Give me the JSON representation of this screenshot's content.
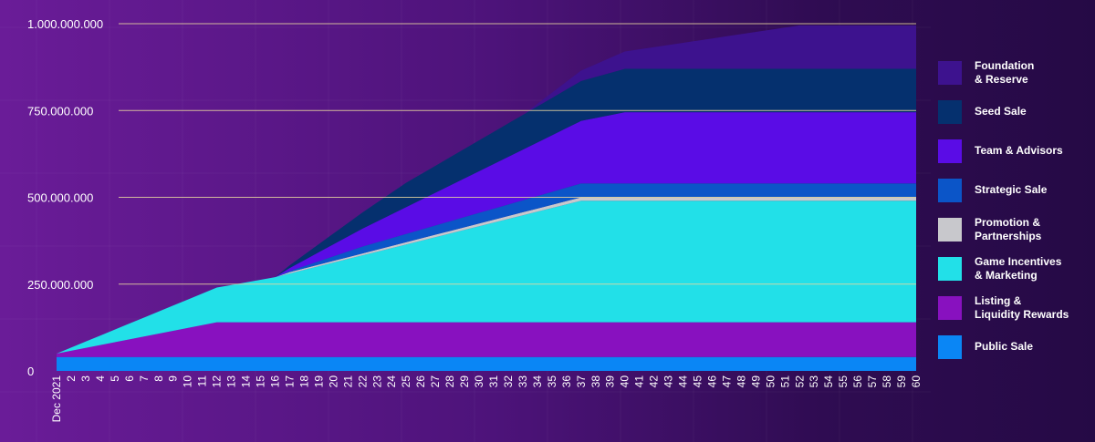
{
  "chart_data": {
    "type": "area",
    "stacked": true,
    "title": "",
    "xlabel": "",
    "ylabel": "",
    "ylim": [
      0,
      1000000000
    ],
    "y_ticks": [
      0,
      250000000,
      500000000,
      750000000,
      1000000000
    ],
    "y_tick_labels": [
      "0",
      "250.000.000",
      "500.000.000",
      "750.000.000",
      "1.000.000.000"
    ],
    "x_ticks": [
      "Dec 2021",
      "2",
      "3",
      "4",
      "5",
      "6",
      "7",
      "8",
      "9",
      "10",
      "11",
      "12",
      "13",
      "14",
      "15",
      "16",
      "17",
      "18",
      "19",
      "20",
      "21",
      "22",
      "23",
      "24",
      "25",
      "26",
      "27",
      "28",
      "29",
      "30",
      "31",
      "32",
      "33",
      "34",
      "35",
      "36",
      "37",
      "38",
      "39",
      "40",
      "41",
      "42",
      "43",
      "44",
      "45",
      "46",
      "47",
      "48",
      "49",
      "50",
      "51",
      "52",
      "53",
      "54",
      "55",
      "56",
      "57",
      "58",
      "59",
      "60"
    ],
    "grid": "horizontal",
    "legend_position": "right",
    "series": [
      {
        "name": "Public Sale",
        "legend": "Public Sale",
        "color": "#0a86f5",
        "points": [
          [
            1,
            40000000
          ],
          [
            60,
            40000000
          ]
        ]
      },
      {
        "name": "Listing & Liquidity Rewards",
        "legend": "Listing &\nLiquidity Rewards",
        "color": "#8811bf",
        "points": [
          [
            1,
            10000000
          ],
          [
            12,
            100000000
          ],
          [
            60,
            100000000
          ]
        ]
      },
      {
        "name": "Game Incentives & Marketing",
        "legend": "Game Incentives\n& Marketing",
        "color": "#22e0e8",
        "points": [
          [
            1,
            0
          ],
          [
            12,
            100000000
          ],
          [
            16,
            130000000
          ],
          [
            37,
            350000000
          ],
          [
            60,
            350000000
          ]
        ]
      },
      {
        "name": "Promotion & Partnerships",
        "legend": "Promotion &\nPartnerships",
        "color": "#c8c8cc",
        "points": [
          [
            1,
            0
          ],
          [
            16,
            0
          ],
          [
            17,
            4000000
          ],
          [
            37,
            10000000
          ],
          [
            60,
            10000000
          ]
        ]
      },
      {
        "name": "Strategic Sale",
        "legend": "Strategic Sale",
        "color": "#0b55c8",
        "points": [
          [
            1,
            0
          ],
          [
            16,
            0
          ],
          [
            22,
            20000000
          ],
          [
            37,
            40000000
          ],
          [
            60,
            40000000
          ]
        ]
      },
      {
        "name": "Team & Advisors",
        "legend": "Team & Advisors",
        "color": "#5a0ce6",
        "points": [
          [
            1,
            0
          ],
          [
            16,
            0
          ],
          [
            37,
            180000000
          ],
          [
            40,
            205000000
          ],
          [
            60,
            205000000
          ]
        ]
      },
      {
        "name": "Seed Sale",
        "legend": "Seed Sale",
        "color": "#05306e",
        "points": [
          [
            1,
            0
          ],
          [
            16,
            0
          ],
          [
            25,
            70000000
          ],
          [
            37,
            115000000
          ],
          [
            40,
            125000000
          ],
          [
            60,
            125000000
          ]
        ]
      },
      {
        "name": "Foundation & Reserve",
        "legend": "Foundation\n& Reserve",
        "color": "#3d128e",
        "points": [
          [
            1,
            0
          ],
          [
            33,
            0
          ],
          [
            37,
            30000000
          ],
          [
            40,
            50000000
          ],
          [
            52,
            125000000
          ],
          [
            60,
            125000000
          ]
        ]
      }
    ]
  }
}
